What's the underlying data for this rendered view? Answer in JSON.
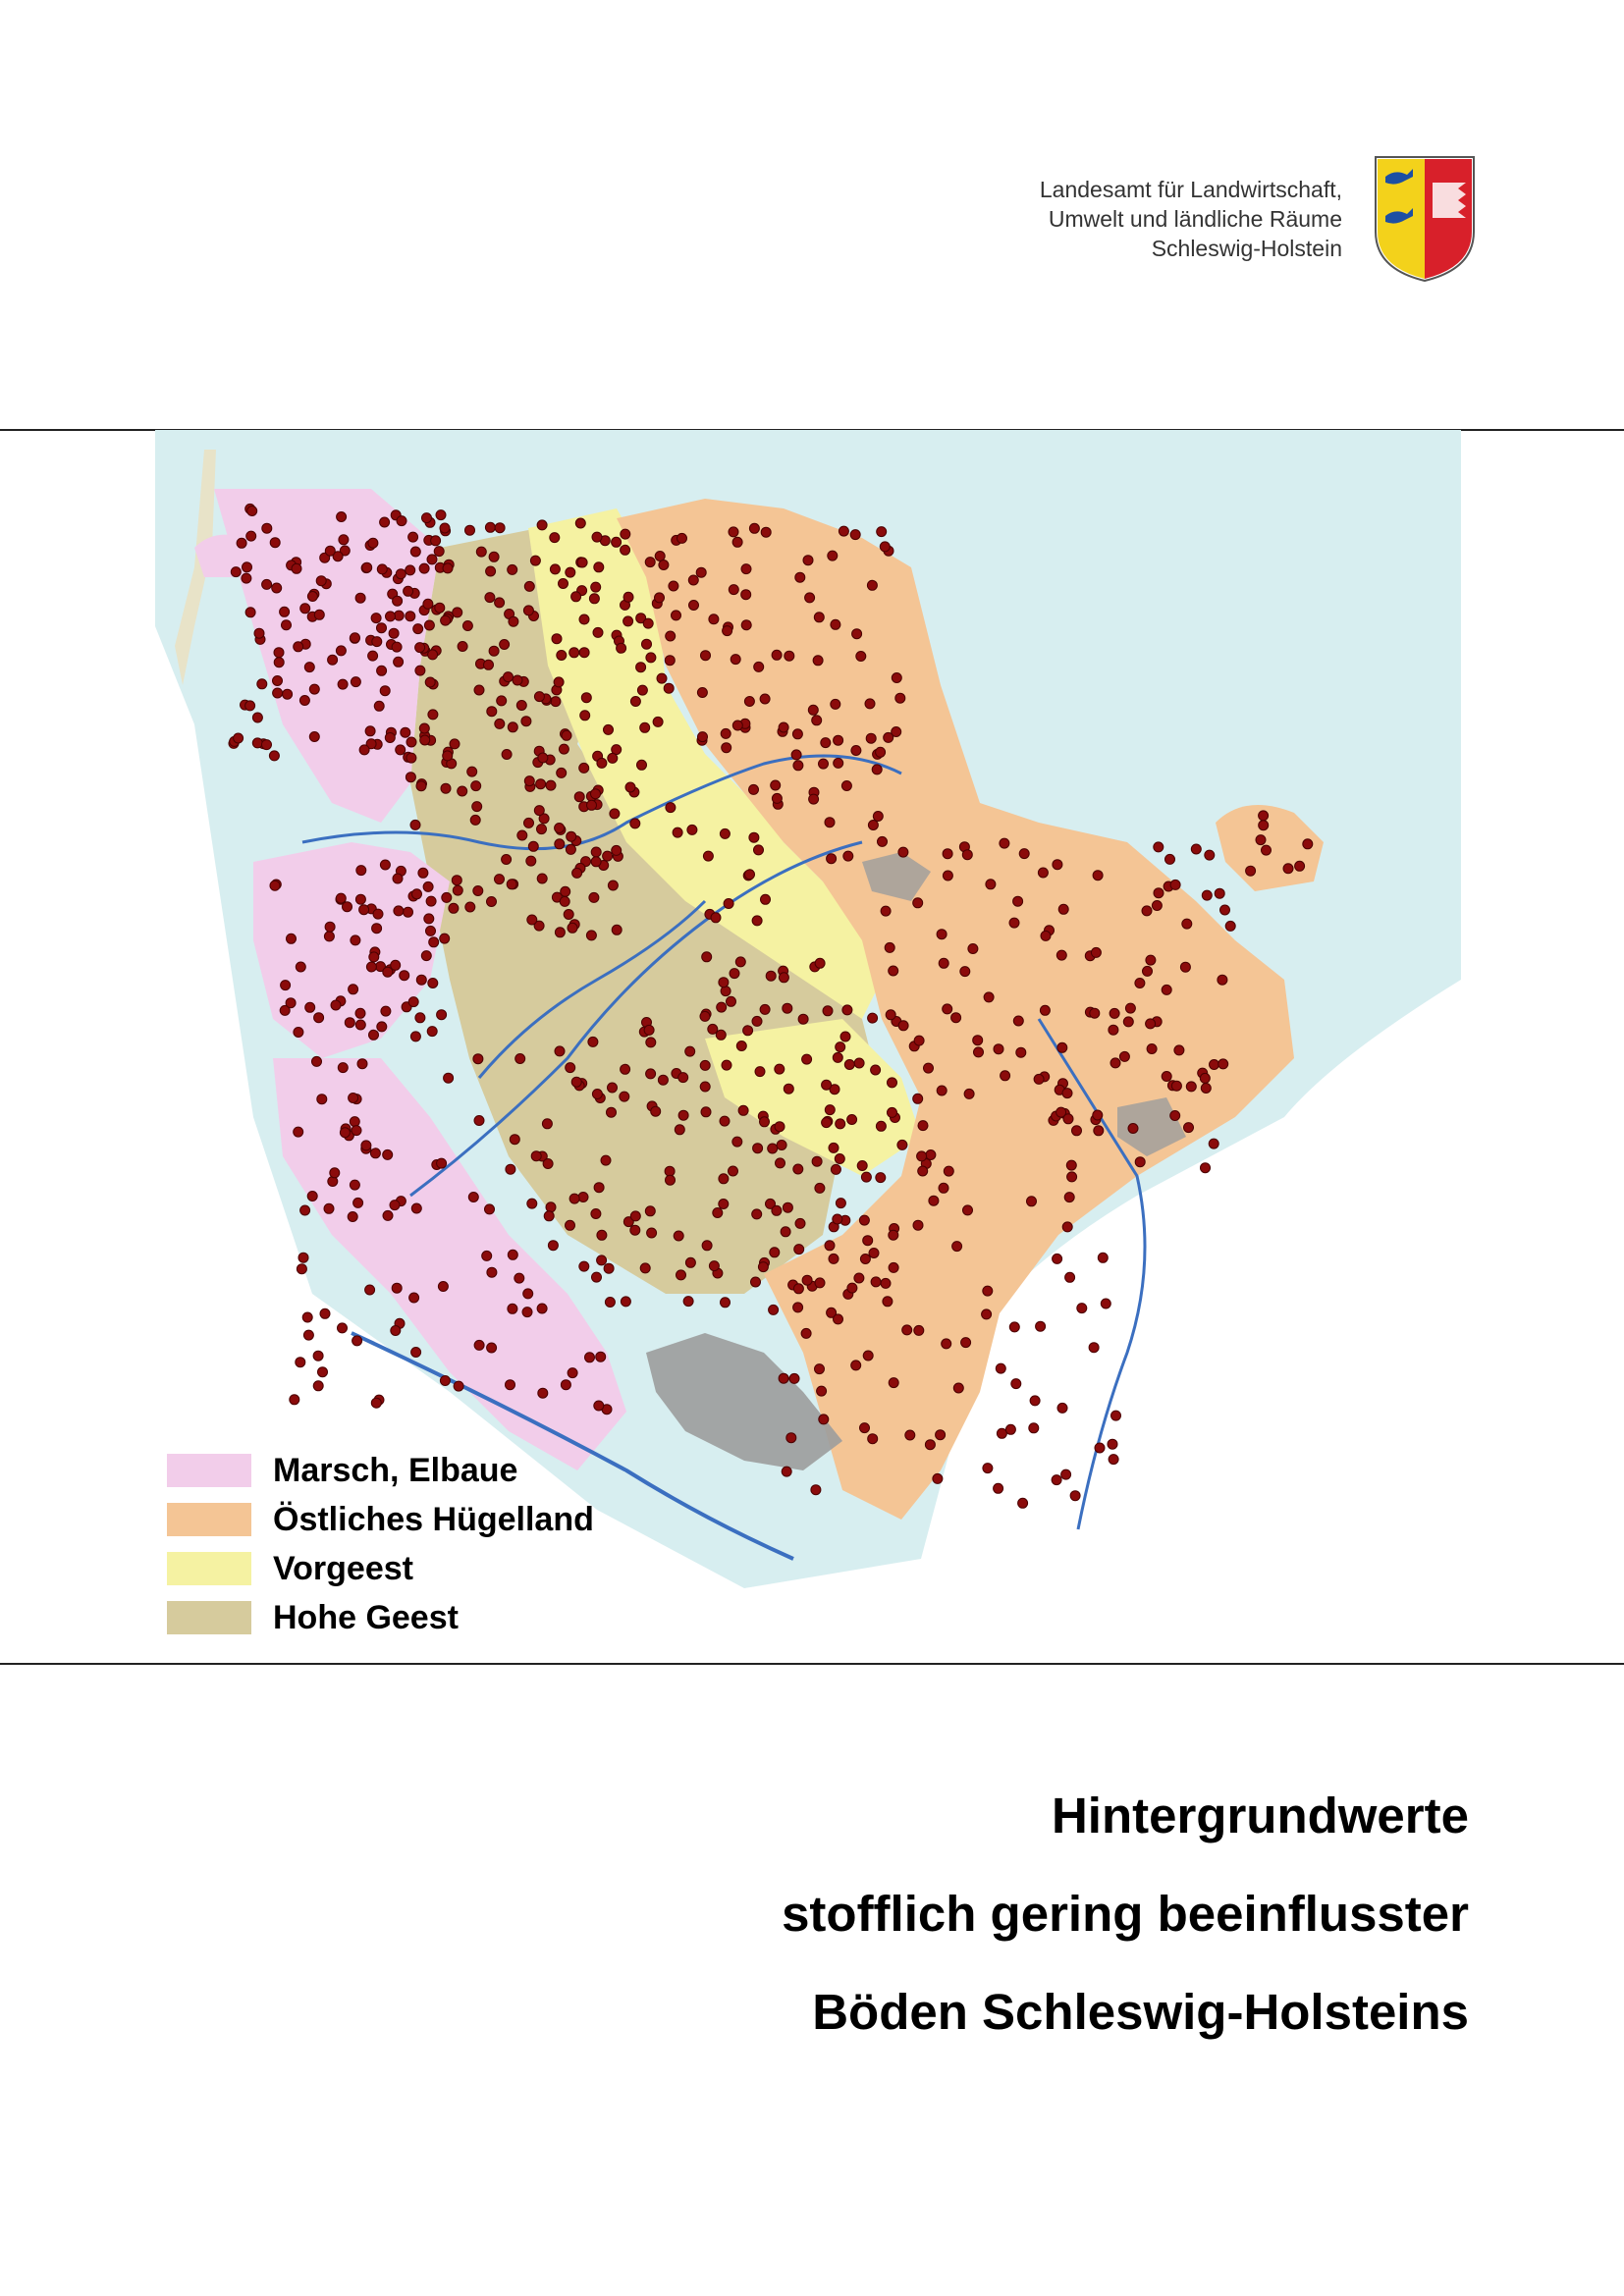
{
  "header": {
    "agency_lines": [
      "Landesamt für Landwirtschaft,",
      "Umwelt und ländliche Räume",
      "Schleswig-Holstein"
    ],
    "crest_icon": "schleswig-holstein-coat-of-arms-icon"
  },
  "map": {
    "colors": {
      "sea": "#d7eef0",
      "marsch": "#f2cdea",
      "huegelland": "#f4c595",
      "vorgeest": "#f5f2a2",
      "hohe_geest": "#d6cb9d",
      "urban": "#9c9c9c",
      "river": "#3b6fc0",
      "sample_point": "#8b0b0b"
    }
  },
  "legend": {
    "items": [
      {
        "label": "Marsch, Elbaue",
        "color": "#f2cdea"
      },
      {
        "label": "Östliches Hügelland",
        "color": "#f4c595"
      },
      {
        "label": "Vorgeest",
        "color": "#f5f2a2"
      },
      {
        "label": "Hohe Geest",
        "color": "#d6cb9d"
      }
    ]
  },
  "title": {
    "lines": [
      "Hintergrundwerte",
      "stofflich gering beeinflusster",
      "Böden Schleswig-Holsteins"
    ]
  }
}
